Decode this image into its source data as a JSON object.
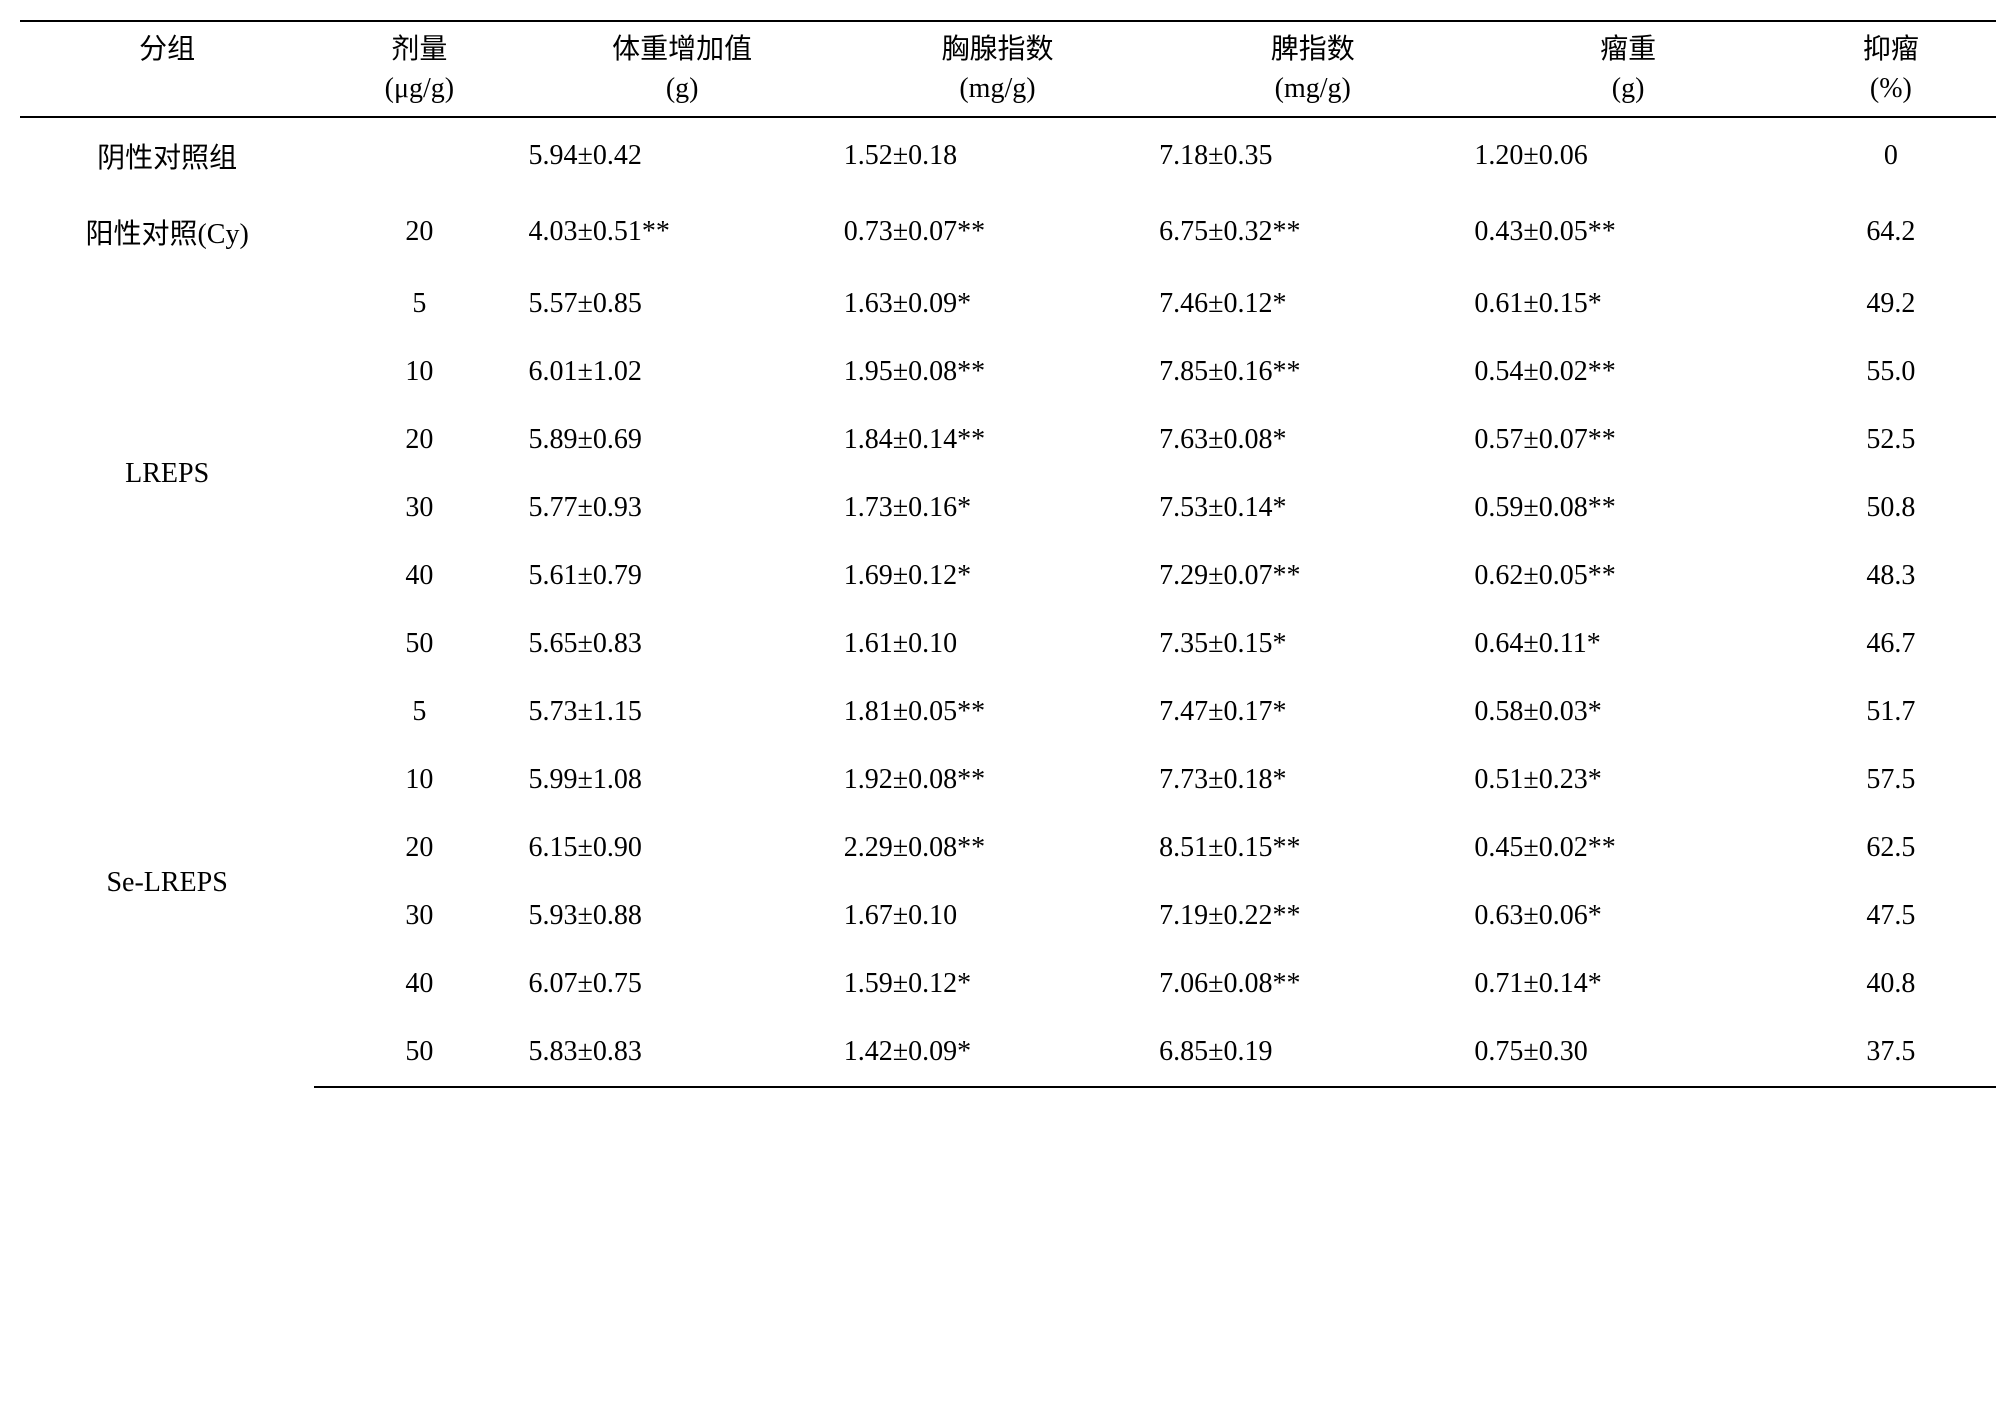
{
  "table": {
    "headers": [
      {
        "line1": "分组",
        "line2": ""
      },
      {
        "line1": "剂量",
        "line2": "(μg/g)"
      },
      {
        "line1": "体重增加值",
        "line2": "(g)"
      },
      {
        "line1": "胸腺指数",
        "line2": "(mg/g)"
      },
      {
        "line1": "脾指数",
        "line2": "(mg/g)"
      },
      {
        "line1": "瘤重",
        "line2": "(g)"
      },
      {
        "line1": "抑瘤",
        "line2": "(%)"
      }
    ],
    "rows": [
      {
        "group": "阴性对照组",
        "rowspan": 1,
        "dose": "",
        "weight_gain": "5.94±0.42",
        "thymus_index": "1.52±0.18",
        "spleen_index": "7.18±0.35",
        "tumor_weight": "1.20±0.06",
        "inhibition": "0"
      },
      {
        "group": "阳性对照(Cy)",
        "rowspan": 1,
        "dose": "20",
        "weight_gain": "4.03±0.51**",
        "thymus_index": "0.73±0.07**",
        "spleen_index": "6.75±0.32**",
        "tumor_weight": "0.43±0.05**",
        "inhibition": "64.2"
      },
      {
        "group": "LREPS",
        "rowspan": 6,
        "dose": "5",
        "weight_gain": "5.57±0.85",
        "thymus_index": "1.63±0.09*",
        "spleen_index": "7.46±0.12*",
        "tumor_weight": "0.61±0.15*",
        "inhibition": "49.2"
      },
      {
        "group": null,
        "dose": "10",
        "weight_gain": "6.01±1.02",
        "thymus_index": "1.95±0.08**",
        "spleen_index": "7.85±0.16**",
        "tumor_weight": "0.54±0.02**",
        "inhibition": "55.0"
      },
      {
        "group": null,
        "dose": "20",
        "weight_gain": "5.89±0.69",
        "thymus_index": "1.84±0.14**",
        "spleen_index": "7.63±0.08*",
        "tumor_weight": "0.57±0.07**",
        "inhibition": "52.5"
      },
      {
        "group": null,
        "dose": "30",
        "weight_gain": "5.77±0.93",
        "thymus_index": "1.73±0.16*",
        "spleen_index": "7.53±0.14*",
        "tumor_weight": "0.59±0.08**",
        "inhibition": "50.8"
      },
      {
        "group": null,
        "dose": "40",
        "weight_gain": "5.61±0.79",
        "thymus_index": "1.69±0.12*",
        "spleen_index": "7.29±0.07**",
        "tumor_weight": "0.62±0.05**",
        "inhibition": "48.3"
      },
      {
        "group": null,
        "dose": "50",
        "weight_gain": "5.65±0.83",
        "thymus_index": "1.61±0.10",
        "spleen_index": "7.35±0.15*",
        "tumor_weight": "0.64±0.11*",
        "inhibition": "46.7"
      },
      {
        "group": "Se-LREPS",
        "rowspan": 6,
        "dose": "5",
        "weight_gain": "5.73±1.15",
        "thymus_index": "1.81±0.05**",
        "spleen_index": "7.47±0.17*",
        "tumor_weight": "0.58±0.03*",
        "inhibition": "51.7"
      },
      {
        "group": null,
        "dose": "10",
        "weight_gain": "5.99±1.08",
        "thymus_index": "1.92±0.08**",
        "spleen_index": "7.73±0.18*",
        "tumor_weight": "0.51±0.23*",
        "inhibition": "57.5"
      },
      {
        "group": null,
        "dose": "20",
        "weight_gain": "6.15±0.90",
        "thymus_index": "2.29±0.08**",
        "spleen_index": "8.51±0.15**",
        "tumor_weight": "0.45±0.02**",
        "inhibition": "62.5"
      },
      {
        "group": null,
        "dose": "30",
        "weight_gain": "5.93±0.88",
        "thymus_index": "1.67±0.10",
        "spleen_index": "7.19±0.22**",
        "tumor_weight": "0.63±0.06*",
        "inhibition": "47.5"
      },
      {
        "group": null,
        "dose": "40",
        "weight_gain": "6.07±0.75",
        "thymus_index": "1.59±0.12*",
        "spleen_index": "7.06±0.08**",
        "tumor_weight": "0.71±0.14*",
        "inhibition": "40.8"
      },
      {
        "group": null,
        "dose": "50",
        "weight_gain": "5.83±0.83",
        "thymus_index": "1.42±0.09*",
        "spleen_index": "6.85±0.19",
        "tumor_weight": "0.75±0.30",
        "inhibition": "37.5"
      }
    ]
  }
}
